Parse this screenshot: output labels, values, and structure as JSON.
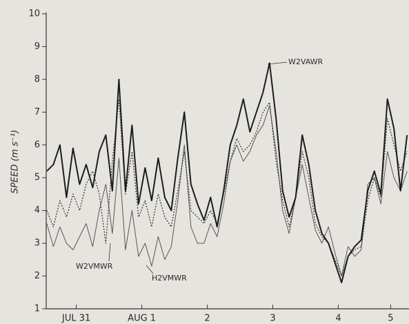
{
  "chart_data": {
    "type": "line",
    "ylabel": "SPEED (m s⁻¹)",
    "x": [
      0.05,
      0.15,
      0.25,
      0.35,
      0.45,
      0.55,
      0.65,
      0.75,
      0.85,
      0.95,
      1.05,
      1.15,
      1.25,
      1.35,
      1.45,
      1.55,
      1.65,
      1.75,
      1.85,
      1.95,
      2.05,
      2.15,
      2.25,
      2.35,
      2.45,
      2.55,
      2.65,
      2.75,
      2.85,
      2.95,
      3.05,
      3.15,
      3.25,
      3.35,
      3.45,
      3.55,
      3.65,
      3.75,
      3.85,
      3.95,
      4.05,
      4.15,
      4.25,
      4.35,
      4.45,
      4.55,
      4.65,
      4.75,
      4.85,
      4.95,
      5.05,
      5.15,
      5.25,
      5.35,
      5.45,
      5.55
    ],
    "xlim": [
      0.04,
      5.58
    ],
    "xticks": [
      {
        "value": 0.5,
        "label": "JUL 31"
      },
      {
        "value": 1.5,
        "label": "AUG 1"
      },
      {
        "value": 2.5,
        "label": "2"
      },
      {
        "value": 3.5,
        "label": "3"
      },
      {
        "value": 4.5,
        "label": "4"
      },
      {
        "value": 5.3,
        "label": "5"
      }
    ],
    "ylim": [
      1,
      10
    ],
    "yticks": [
      1,
      2,
      3,
      4,
      5,
      6,
      7,
      8,
      9,
      10
    ],
    "series": [
      {
        "name": "W2VAWR",
        "color": "#1c1c1c",
        "linewidth": 2,
        "linestyle": "solid",
        "values": [
          5.2,
          5.4,
          6.0,
          4.4,
          5.9,
          4.8,
          5.4,
          4.7,
          5.8,
          6.3,
          4.6,
          8.0,
          4.6,
          6.6,
          4.2,
          5.3,
          4.3,
          5.6,
          4.4,
          4.0,
          5.6,
          7.0,
          4.8,
          4.2,
          3.7,
          4.4,
          3.5,
          4.6,
          6.0,
          6.6,
          7.4,
          6.4,
          7.0,
          7.6,
          8.5,
          6.8,
          4.6,
          3.8,
          4.4,
          6.3,
          5.4,
          4.0,
          3.3,
          3.0,
          2.4,
          1.8,
          2.6,
          2.9,
          3.1,
          4.6,
          5.2,
          4.5,
          7.4,
          6.5,
          4.6,
          6.3
        ]
      },
      {
        "name": "W2VMWR",
        "color": "#3a3a3a",
        "linewidth": 1.3,
        "linestyle": "dotted",
        "values": [
          4.0,
          3.5,
          4.3,
          3.8,
          4.5,
          4.0,
          4.8,
          5.2,
          4.5,
          3.0,
          5.5,
          7.4,
          4.5,
          5.8,
          3.8,
          4.3,
          3.5,
          4.5,
          3.8,
          3.5,
          4.6,
          5.8,
          4.0,
          3.8,
          3.6,
          4.0,
          3.6,
          4.5,
          5.5,
          6.2,
          5.8,
          6.0,
          6.4,
          7.0,
          7.3,
          5.5,
          4.3,
          3.5,
          4.4,
          5.8,
          5.0,
          3.6,
          3.2,
          3.0,
          2.5,
          2.0,
          2.6,
          2.8,
          2.9,
          4.3,
          5.0,
          4.4,
          6.8,
          6.0,
          5.2,
          5.8
        ]
      },
      {
        "name": "H2VMWR",
        "color": "#555555",
        "linewidth": 1,
        "linestyle": "solid",
        "values": [
          3.6,
          2.9,
          3.5,
          3.0,
          2.8,
          3.2,
          3.6,
          2.9,
          4.0,
          4.8,
          3.3,
          5.6,
          2.8,
          4.0,
          2.6,
          3.0,
          2.3,
          3.2,
          2.5,
          2.9,
          4.3,
          6.0,
          3.5,
          3.0,
          3.0,
          3.6,
          3.2,
          4.2,
          5.5,
          6.0,
          5.5,
          5.8,
          6.3,
          6.6,
          7.2,
          5.8,
          4.0,
          3.3,
          4.4,
          5.4,
          4.4,
          3.4,
          3.0,
          3.5,
          2.7,
          2.0,
          2.9,
          2.6,
          2.8,
          4.8,
          5.0,
          4.2,
          5.8,
          5.0,
          4.6,
          5.2
        ]
      }
    ]
  }
}
